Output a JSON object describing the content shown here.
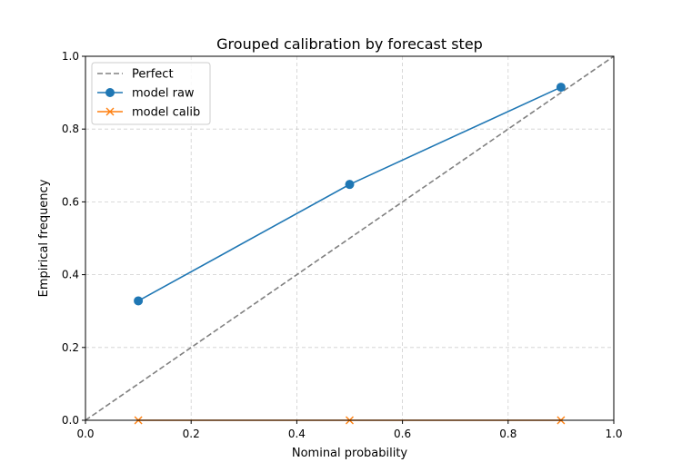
{
  "chart_data": {
    "type": "line",
    "title": "Grouped calibration by forecast step",
    "xlabel": "Nominal probability",
    "ylabel": "Empirical frequency",
    "xlim": [
      0.0,
      1.0
    ],
    "ylim": [
      0.0,
      1.0
    ],
    "xticks": [
      0.0,
      0.2,
      0.4,
      0.6,
      0.8,
      1.0
    ],
    "yticks": [
      0.0,
      0.2,
      0.4,
      0.6,
      0.8,
      1.0
    ],
    "xtick_labels": [
      "0.0",
      "0.2",
      "0.4",
      "0.6",
      "0.8",
      "1.0"
    ],
    "ytick_labels": [
      "0.0",
      "0.2",
      "0.4",
      "0.6",
      "0.8",
      "1.0"
    ],
    "grid": true,
    "legend_position": "top-left",
    "series": [
      {
        "name": "Perfect",
        "x": [
          0.0,
          1.0
        ],
        "y": [
          0.0,
          1.0
        ],
        "color": "#808080",
        "style": "dashed",
        "marker": "none"
      },
      {
        "name": "model raw",
        "x": [
          0.1,
          0.5,
          0.9
        ],
        "y": [
          0.328,
          0.648,
          0.915
        ],
        "color": "#1f77b4",
        "style": "solid",
        "marker": "circle"
      },
      {
        "name": "model calib",
        "x": [
          0.1,
          0.5,
          0.9
        ],
        "y": [
          0.0,
          0.0,
          0.0
        ],
        "color": "#ff7f0e",
        "style": "solid",
        "marker": "x"
      }
    ]
  }
}
